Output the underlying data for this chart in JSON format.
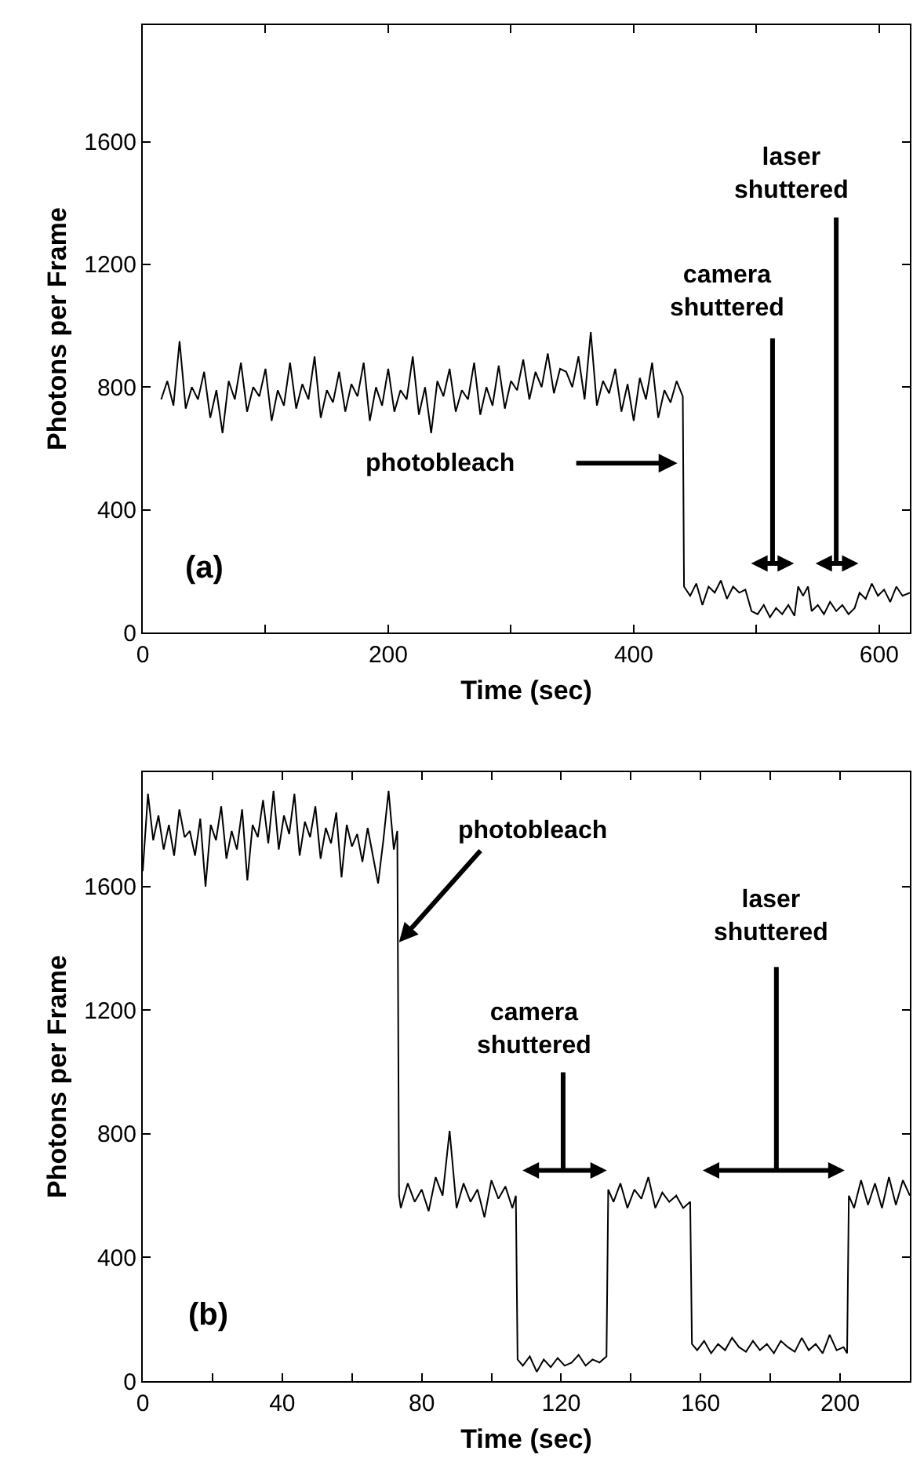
{
  "chart_data": [
    {
      "type": "line",
      "xlabel": "Time (sec)",
      "ylabel": "Photons per Frame",
      "color": "#000000",
      "xlim": [
        0,
        625
      ],
      "ylim": [
        0,
        1980
      ],
      "xticks": [
        0,
        {
          "value": 100,
          "label": null
        },
        200,
        {
          "value": 300,
          "label": null
        },
        400,
        {
          "value": 500,
          "label": null
        },
        600
      ],
      "yticks": [
        0,
        400,
        800,
        1200,
        1600
      ],
      "x": [
        15,
        20,
        25,
        30,
        35,
        40,
        45,
        50,
        55,
        60,
        65,
        70,
        75,
        80,
        85,
        90,
        95,
        100,
        105,
        110,
        115,
        120,
        125,
        130,
        135,
        140,
        145,
        150,
        155,
        160,
        165,
        170,
        175,
        180,
        185,
        190,
        195,
        200,
        205,
        210,
        215,
        220,
        225,
        230,
        235,
        240,
        245,
        250,
        255,
        260,
        265,
        270,
        275,
        280,
        285,
        290,
        295,
        300,
        305,
        310,
        315,
        320,
        325,
        330,
        335,
        340,
        345,
        350,
        355,
        360,
        365,
        370,
        375,
        380,
        385,
        390,
        395,
        400,
        405,
        410,
        415,
        420,
        425,
        430,
        435,
        440,
        441,
        446,
        451,
        456,
        461,
        466,
        471,
        476,
        481,
        486,
        491,
        496,
        501,
        506,
        511,
        516,
        521,
        526,
        531,
        534,
        538,
        542,
        545,
        550,
        555,
        560,
        565,
        570,
        575,
        580,
        584,
        589,
        594,
        599,
        604,
        609,
        614,
        619,
        625
      ],
      "values": [
        760,
        820,
        740,
        950,
        730,
        800,
        760,
        850,
        700,
        790,
        650,
        820,
        760,
        880,
        720,
        800,
        770,
        860,
        690,
        790,
        740,
        880,
        730,
        810,
        760,
        900,
        700,
        790,
        750,
        850,
        720,
        810,
        770,
        880,
        690,
        800,
        740,
        860,
        720,
        790,
        760,
        900,
        710,
        800,
        650,
        820,
        770,
        860,
        720,
        790,
        760,
        880,
        710,
        800,
        740,
        870,
        730,
        820,
        790,
        890,
        760,
        850,
        800,
        910,
        780,
        860,
        850,
        800,
        900,
        760,
        980,
        740,
        820,
        780,
        860,
        720,
        810,
        690,
        830,
        760,
        880,
        700,
        790,
        750,
        820,
        770,
        150,
        120,
        160,
        90,
        150,
        130,
        170,
        110,
        150,
        130,
        140,
        70,
        60,
        90,
        50,
        80,
        60,
        90,
        55,
        150,
        120,
        150,
        70,
        90,
        60,
        100,
        70,
        90,
        60,
        80,
        130,
        110,
        160,
        120,
        140,
        100,
        150,
        120,
        130
      ],
      "annotations": [
        "(a)",
        "photobleach",
        "camera\nshuttered",
        "laser\nshuttered"
      ]
    },
    {
      "type": "line",
      "xlabel": "Time (sec)",
      "ylabel": "Photons per Frame",
      "color": "#000000",
      "xlim": [
        0,
        220
      ],
      "ylim": [
        0,
        1970
      ],
      "xticks": [
        0,
        {
          "value": 20,
          "label": null
        },
        40,
        {
          "value": 60,
          "label": null
        },
        80,
        {
          "value": 100,
          "label": null
        },
        120,
        {
          "value": 140,
          "label": null
        },
        160,
        {
          "value": 180,
          "label": null
        },
        200
      ],
      "yticks": [
        0,
        400,
        800,
        1200,
        1600
      ],
      "x": [
        0,
        1.5,
        3,
        4.5,
        6,
        7.5,
        9,
        10.5,
        12,
        13.5,
        15,
        16.5,
        18,
        19.5,
        21,
        22.5,
        24,
        25.5,
        27,
        28.5,
        30,
        31.5,
        33,
        34.5,
        36,
        37.5,
        39,
        40.5,
        42,
        43.5,
        45,
        46.5,
        48,
        49.5,
        51,
        52.5,
        54,
        55.5,
        57,
        58.5,
        60,
        61.5,
        63,
        64.5,
        66,
        67.5,
        69,
        70.5,
        72,
        73,
        73.5,
        74,
        76,
        78,
        80,
        82,
        84,
        86,
        88,
        90,
        92,
        94,
        96,
        98,
        100,
        102,
        104,
        106,
        107,
        107.5,
        109,
        111,
        113,
        115,
        117,
        119,
        121,
        123,
        125,
        127,
        129,
        131,
        133,
        133.5,
        135,
        137,
        139,
        141,
        143,
        145,
        147,
        149,
        151,
        153,
        155,
        157,
        157.5,
        159,
        161,
        163,
        165,
        167,
        169,
        171,
        173,
        175,
        177,
        179,
        181,
        183,
        185,
        187,
        189,
        191,
        193,
        195,
        197,
        199,
        201,
        202,
        202.5,
        204,
        206,
        208,
        210,
        212,
        214,
        216,
        218,
        220
      ],
      "values": [
        1650,
        1900,
        1750,
        1830,
        1720,
        1800,
        1700,
        1850,
        1760,
        1780,
        1700,
        1820,
        1600,
        1800,
        1750,
        1860,
        1690,
        1780,
        1720,
        1850,
        1620,
        1800,
        1760,
        1880,
        1740,
        1910,
        1720,
        1830,
        1770,
        1900,
        1700,
        1810,
        1760,
        1860,
        1690,
        1790,
        1740,
        1840,
        1630,
        1800,
        1730,
        1770,
        1680,
        1790,
        1700,
        1610,
        1750,
        1910,
        1720,
        1780,
        600,
        560,
        640,
        580,
        620,
        550,
        660,
        600,
        810,
        560,
        640,
        580,
        620,
        530,
        650,
        590,
        630,
        560,
        600,
        70,
        50,
        80,
        30,
        70,
        45,
        75,
        50,
        60,
        85,
        50,
        70,
        60,
        80,
        620,
        580,
        640,
        560,
        620,
        590,
        660,
        560,
        610,
        580,
        600,
        560,
        580,
        120,
        100,
        130,
        90,
        120,
        100,
        140,
        110,
        95,
        130,
        100,
        120,
        90,
        130,
        110,
        95,
        140,
        100,
        120,
        90,
        150,
        100,
        110,
        90,
        600,
        560,
        650,
        570,
        640,
        560,
        660,
        570,
        650,
        600
      ],
      "annotations": [
        "(b)",
        {
          "text": "photobleach",
          "x": 73.5,
          "y": 1420
        },
        "camera\nshuttered",
        "laser\nshuttered"
      ]
    }
  ]
}
